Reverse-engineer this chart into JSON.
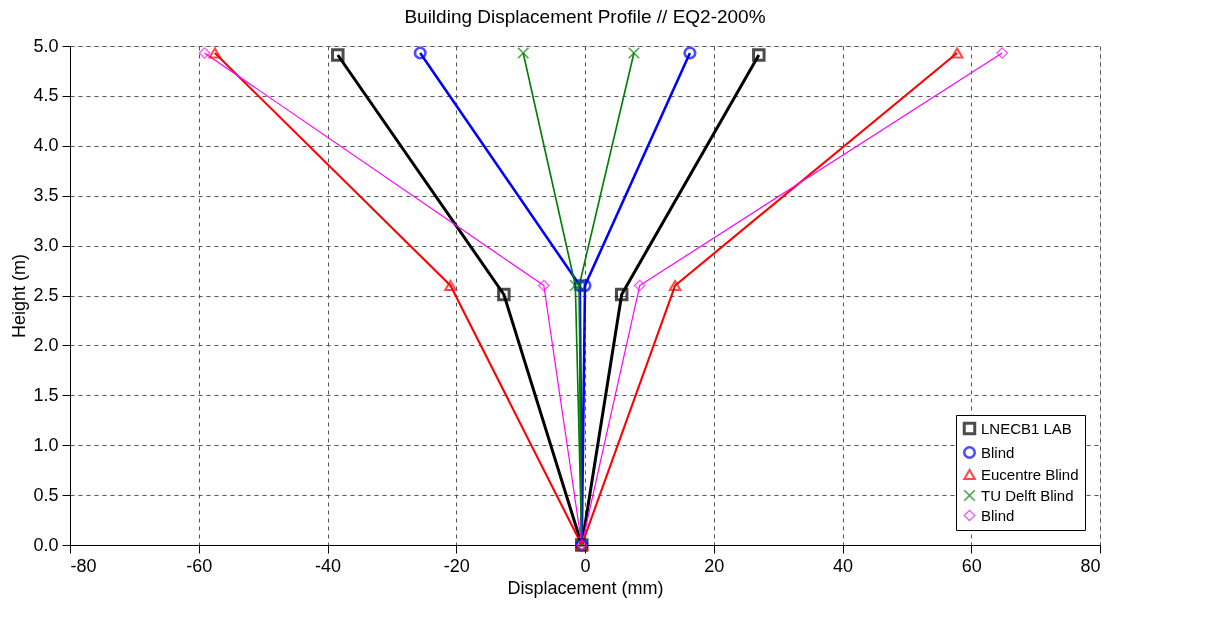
{
  "chart_data": {
    "type": "line",
    "title": "Building Displacement Profile // EQ2-200%",
    "xlabel": "Displacement (mm)",
    "ylabel": "Height (m)",
    "xlim": [
      -80,
      80
    ],
    "xticks": [
      -80,
      -60,
      -40,
      -20,
      0,
      20,
      40,
      60,
      80
    ],
    "ylim": [
      0,
      5
    ],
    "yticks": [
      {
        "value": 0,
        "label": "0.0"
      },
      {
        "value": 0.5,
        "label": "0.5"
      },
      {
        "value": 1,
        "label": "1.0"
      },
      {
        "value": 1.5,
        "label": "1.5"
      },
      {
        "value": 2,
        "label": "2.0"
      },
      {
        "value": 2.5,
        "label": "2.5"
      },
      {
        "value": 3,
        "label": "3.0"
      },
      {
        "value": 3.5,
        "label": "3.5"
      },
      {
        "value": 4,
        "label": "4.0"
      },
      {
        "value": 4.5,
        "label": "4.5"
      },
      {
        "value": 5,
        "label": "5.0"
      }
    ],
    "grid": true,
    "legend": "bottom right",
    "line_style": "solid",
    "series": [
      {
        "name": "LNECB1 LAB",
        "color": "#000000",
        "marker": "square",
        "x": [
          -38.4,
          -12.6,
          -0.5,
          5.7,
          27.0
        ],
        "values": [
          4.91,
          2.51,
          0,
          2.51,
          4.91
        ]
      },
      {
        "name": "Blind",
        "color": "#0000ff",
        "marker": "circle",
        "x": [
          -25.6,
          -0.8,
          -0.5,
          0,
          16.3
        ],
        "values": [
          4.93,
          2.6,
          0,
          2.6,
          4.93
        ]
      },
      {
        "name": "Eucentre Blind",
        "color": "#ff0000",
        "marker": "triangle",
        "x": [
          -57.5,
          -20.9,
          -0.5,
          14.0,
          57.8
        ],
        "values": [
          4.93,
          2.6,
          0,
          2.6,
          4.93
        ]
      },
      {
        "name": "TU Delft Blind",
        "color": "#008000",
        "marker": "cross",
        "x": [
          -9.6,
          -1.5,
          -0.5,
          -0.9,
          7.6
        ],
        "values": [
          4.93,
          2.6,
          0,
          2.6,
          4.93
        ]
      },
      {
        "name": "Blind",
        "color": "#ff00ff",
        "marker": "diamond",
        "x": [
          -59.1,
          -6.4,
          -0.5,
          8.5,
          64.8
        ],
        "values": [
          4.93,
          2.6,
          0,
          2.6,
          4.93
        ]
      }
    ]
  }
}
